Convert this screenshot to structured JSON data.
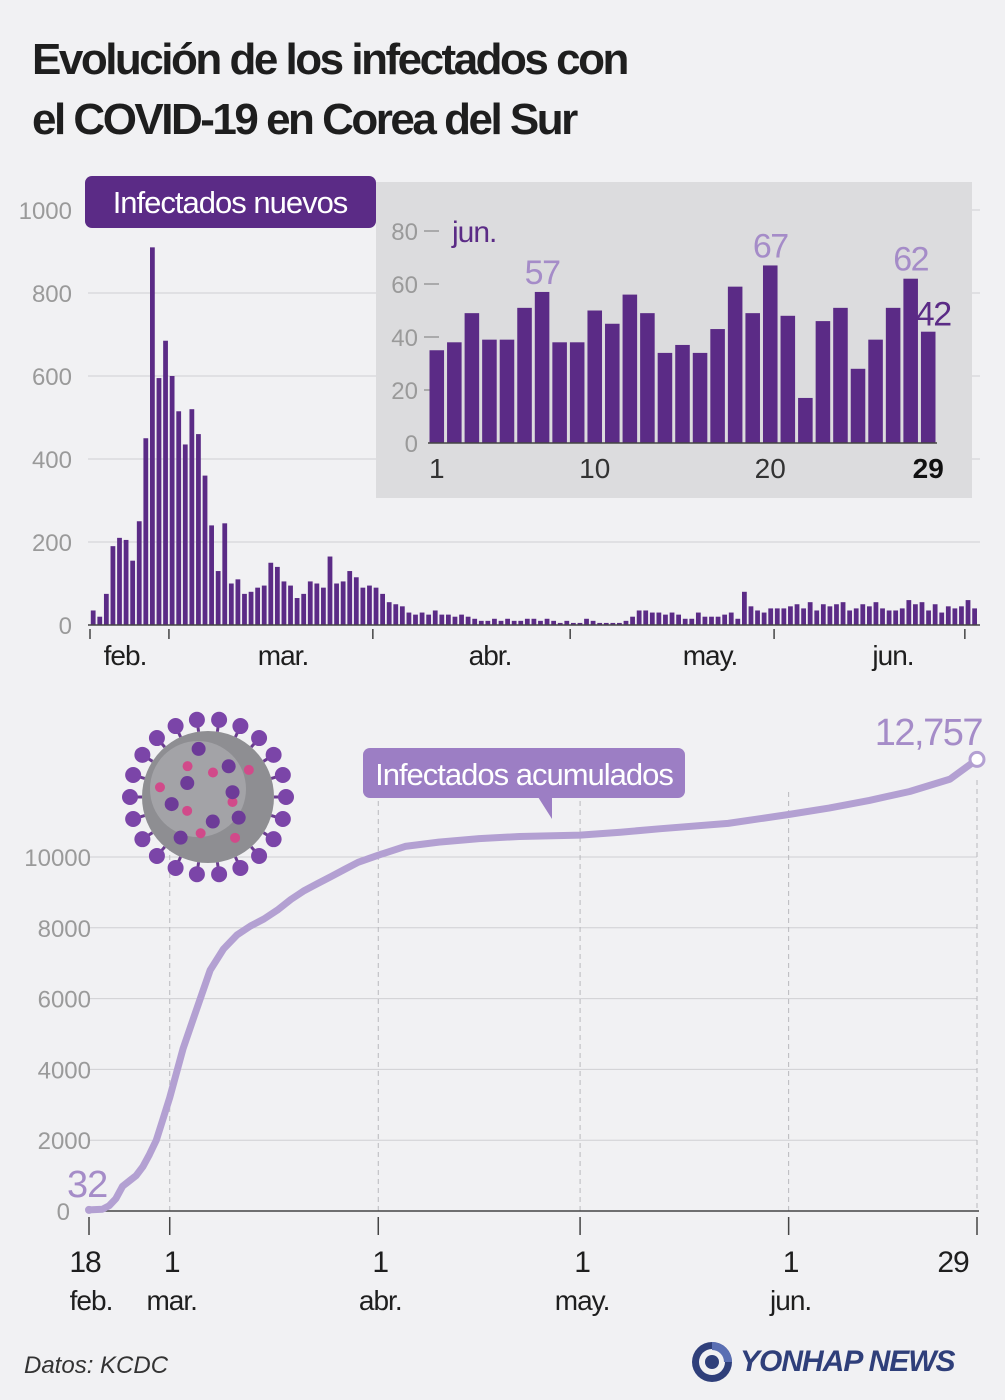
{
  "title_lines": [
    "Evolución de los infectados con",
    "el COVID-19 en Corea del Sur"
  ],
  "source": "Datos: KCDC",
  "brand": "YONHAP NEWS",
  "colors": {
    "bar": "#5b2b86",
    "line": "#b3a0d2",
    "accent_label": "#a58cc8",
    "inset_bg": "#dcdcde",
    "grid": "#cfcfd3",
    "axis_text": "#9a9a9a",
    "tag_dark": "#5b2b86",
    "tag_light": "#9c7ec4"
  },
  "chart_data": [
    {
      "type": "bar",
      "title": "Infectados nuevos",
      "yticks": [
        0,
        200,
        400,
        600,
        800,
        1000
      ],
      "ylim": [
        0,
        1000
      ],
      "month_labels": [
        "feb.",
        "mar.",
        "abr.",
        "may.",
        "jun."
      ],
      "start_date": "2020-02-18",
      "values": [
        35,
        20,
        75,
        190,
        210,
        205,
        155,
        250,
        450,
        910,
        595,
        685,
        600,
        515,
        435,
        520,
        460,
        360,
        240,
        130,
        245,
        100,
        110,
        75,
        80,
        90,
        95,
        150,
        140,
        105,
        95,
        65,
        75,
        105,
        100,
        90,
        165,
        100,
        105,
        130,
        115,
        90,
        95,
        90,
        75,
        55,
        50,
        45,
        30,
        25,
        30,
        25,
        35,
        25,
        25,
        20,
        25,
        20,
        15,
        10,
        10,
        15,
        10,
        15,
        10,
        10,
        15,
        15,
        10,
        15,
        10,
        5,
        10,
        5,
        5,
        15,
        10,
        5,
        5,
        5,
        5,
        10,
        20,
        35,
        35,
        30,
        30,
        25,
        30,
        25,
        15,
        15,
        30,
        20,
        20,
        20,
        25,
        30,
        15,
        80,
        45,
        35,
        30,
        40,
        40,
        40,
        45,
        50,
        40,
        55,
        35,
        50,
        45,
        50,
        55,
        35,
        40,
        50,
        45,
        55,
        40,
        35,
        35,
        40,
        60,
        50,
        55,
        35,
        50,
        30,
        45,
        40,
        45,
        60,
        40
      ]
    },
    {
      "type": "bar",
      "title": "jun.",
      "x": [
        1,
        2,
        3,
        4,
        5,
        6,
        7,
        8,
        9,
        10,
        11,
        12,
        13,
        14,
        15,
        16,
        17,
        18,
        19,
        20,
        21,
        22,
        23,
        24,
        25,
        26,
        27,
        28,
        29
      ],
      "values": [
        35,
        38,
        49,
        39,
        39,
        51,
        57,
        38,
        38,
        50,
        45,
        56,
        49,
        34,
        37,
        34,
        43,
        59,
        49,
        67,
        48,
        17,
        46,
        51,
        28,
        39,
        51,
        62,
        42
      ],
      "xticks": [
        1,
        10,
        20,
        29
      ],
      "yticks": [
        0,
        20,
        40,
        60,
        80
      ],
      "ylim": [
        0,
        80
      ],
      "highlight_labels": [
        {
          "x": 7,
          "label": "57"
        },
        {
          "x": 20,
          "label": "67"
        },
        {
          "x": 28,
          "label": "62"
        },
        {
          "x": 29,
          "label": "42"
        }
      ]
    },
    {
      "type": "line",
      "title": "Infectados acumulados",
      "yticks": [
        0,
        2000,
        4000,
        6000,
        8000,
        10000
      ],
      "ylim": [
        0,
        12757
      ],
      "x_ticks": [
        {
          "day": 0,
          "top": "18",
          "bottom": "feb."
        },
        {
          "day": 12,
          "top": "1",
          "bottom": "mar."
        },
        {
          "day": 43,
          "top": "1",
          "bottom": "abr."
        },
        {
          "day": 73,
          "top": "1",
          "bottom": "may."
        },
        {
          "day": 104,
          "top": "1",
          "bottom": "jun."
        },
        {
          "day": 132,
          "top": "29",
          "bottom": ""
        }
      ],
      "series": [
        {
          "days": [
            0,
            2,
            3,
            4,
            5,
            7,
            8,
            9,
            10,
            11,
            12,
            14,
            16,
            18,
            20,
            22,
            24,
            26,
            28,
            30,
            32,
            34,
            36,
            38,
            40,
            43,
            47,
            52,
            58,
            64,
            73,
            79,
            85,
            95,
            104,
            110,
            116,
            122,
            128,
            132
          ],
          "values": [
            32,
            50,
            150,
            350,
            700,
            1000,
            1250,
            1600,
            2000,
            2600,
            3200,
            4600,
            5700,
            6800,
            7400,
            7800,
            8050,
            8250,
            8500,
            8800,
            9050,
            9250,
            9450,
            9650,
            9850,
            10050,
            10300,
            10420,
            10520,
            10580,
            10620,
            10700,
            10800,
            10950,
            11200,
            11380,
            11600,
            11850,
            12200,
            12757
          ]
        }
      ],
      "start_label": "32",
      "end_label": "12,757"
    }
  ]
}
